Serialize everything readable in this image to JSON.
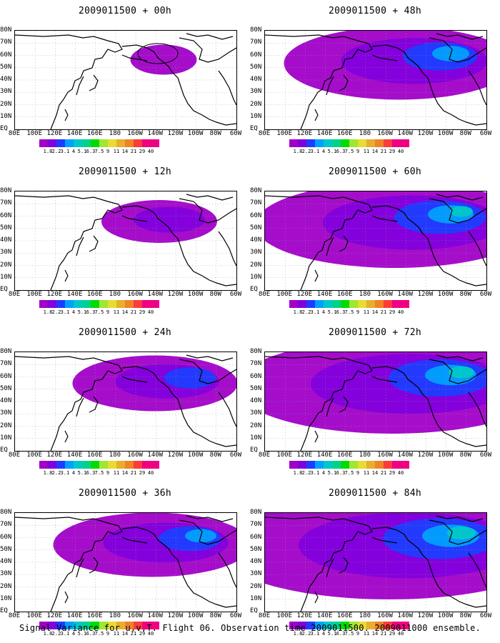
{
  "panels": [
    {
      "title": "2009011500 + 00h",
      "spread": 0.05,
      "ring": true
    },
    {
      "title": "2009011500 + 48h",
      "spread": 0.55
    },
    {
      "title": "2009011500 + 12h",
      "spread": 0.2
    },
    {
      "title": "2009011500 + 60h",
      "spread": 0.7
    },
    {
      "title": "2009011500 + 24h",
      "spread": 0.35
    },
    {
      "title": "2009011500 + 72h",
      "spread": 0.8
    },
    {
      "title": "2009011500 + 36h",
      "spread": 0.45
    },
    {
      "title": "2009011500 + 84h",
      "spread": 0.9
    }
  ],
  "lat_labels": [
    "80N",
    "70N",
    "60N",
    "50N",
    "40N",
    "30N",
    "20N",
    "10N",
    "EQ"
  ],
  "lon_labels": [
    "80E",
    "100E",
    "120E",
    "140E",
    "160E",
    "180",
    "160W",
    "140W",
    "120W",
    "100W",
    "80W",
    "60W"
  ],
  "colorbar": {
    "colors": [
      "#a000c8",
      "#8200dc",
      "#1e3cff",
      "#00a0ff",
      "#00c8c8",
      "#00d28c",
      "#00dc00",
      "#a0e632",
      "#e6dc32",
      "#e6af2d",
      "#f08228",
      "#fa3c3c",
      "#f00082"
    ],
    "labels": [
      "1.8",
      "2.2",
      "3.1",
      "4",
      "5.1",
      "6.3",
      "7.5",
      "9",
      "11",
      "14",
      "21",
      "29",
      "40"
    ]
  },
  "caption": "Signal Variance for u,v,T. Flight 06. Observation time 2009011500. 2009011000 ensemble."
}
